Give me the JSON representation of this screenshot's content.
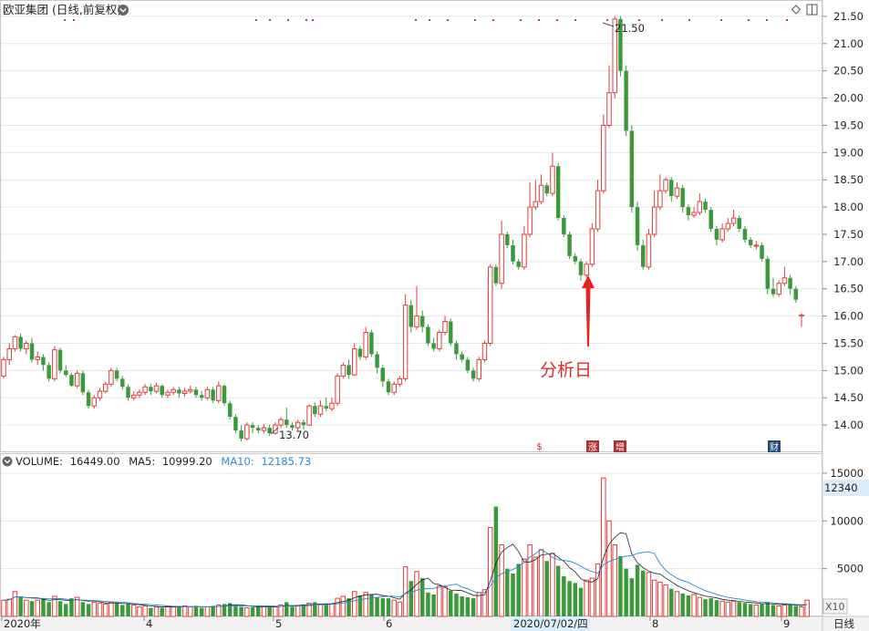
{
  "header": {
    "title": "欧亚集团 (日线,前复权)",
    "dropdown_icon": "chevron-down-icon",
    "diamond_icon": "diamond-icon",
    "settings_icon": "window-icon"
  },
  "price_axis": {
    "ticks": [
      "21.50",
      "21.00",
      "20.50",
      "20.00",
      "19.50",
      "19.00",
      "18.50",
      "18.00",
      "17.50",
      "17.00",
      "16.50",
      "16.00",
      "15.50",
      "15.00",
      "14.50",
      "14.00"
    ],
    "values": [
      21.5,
      21.0,
      20.5,
      20.0,
      19.5,
      19.0,
      18.5,
      18.0,
      17.5,
      17.0,
      16.5,
      16.0,
      15.5,
      15.0,
      14.5,
      14.0
    ]
  },
  "annotations": {
    "high_label": "21.50",
    "low_label": "13.70",
    "analysis_label": "分析日",
    "event_markers": [
      "$",
      "涨",
      "增",
      "财"
    ]
  },
  "volume_header": {
    "volume_label": "VOLUME:",
    "volume_value": "16449.00",
    "ma5_label": "MA5:",
    "ma5_value": "10999.20",
    "ma10_label": "MA10:",
    "ma10_value": "12185.73"
  },
  "volume_axis": {
    "ticks": [
      "15000",
      "10000",
      "5000"
    ],
    "values": [
      15000,
      10000,
      5000
    ],
    "current_badge": "12340",
    "multiplier": "X10"
  },
  "time_axis": {
    "labels": [
      "2020年",
      "4",
      "5",
      "6",
      "8",
      "9"
    ],
    "cursor_label": "2020/07/02/四",
    "period_button": "日线"
  },
  "colors": {
    "up": "#e03c3c",
    "down": "#3a9a3a",
    "ma5": "#222222",
    "ma10": "#2a8ad0",
    "grid": "#e6e6e6",
    "annotation": "#e02a2a",
    "marker_dots": "#d020d0"
  },
  "chart_data": {
    "type": "candlestick",
    "title": "欧亚集团 (日线,前复权)",
    "ylim": [
      13.5,
      21.8
    ],
    "volume_ylim": [
      0,
      17000
    ],
    "high": 21.5,
    "low": 13.7,
    "candles": [
      [
        14.9,
        15.2,
        15.25,
        14.85
      ],
      [
        15.2,
        15.4,
        15.5,
        15.1
      ],
      [
        15.4,
        15.62,
        15.65,
        15.35
      ],
      [
        15.62,
        15.4,
        15.68,
        15.35
      ],
      [
        15.4,
        15.5,
        15.55,
        15.3
      ],
      [
        15.5,
        15.2,
        15.6,
        15.15
      ],
      [
        15.2,
        15.25,
        15.35,
        15.1
      ],
      [
        15.25,
        15.1,
        15.3,
        15.0
      ],
      [
        15.1,
        14.85,
        15.15,
        14.8
      ],
      [
        14.85,
        15.38,
        15.45,
        14.8
      ],
      [
        15.38,
        15.0,
        15.42,
        14.95
      ],
      [
        15.0,
        14.92,
        15.1,
        14.88
      ],
      [
        14.92,
        14.72,
        14.95,
        14.7
      ],
      [
        14.72,
        14.95,
        15.0,
        14.68
      ],
      [
        14.95,
        14.6,
        15.0,
        14.55
      ],
      [
        14.6,
        14.35,
        14.65,
        14.3
      ],
      [
        14.35,
        14.5,
        14.55,
        14.3
      ],
      [
        14.5,
        14.62,
        14.68,
        14.45
      ],
      [
        14.62,
        14.75,
        14.8,
        14.58
      ],
      [
        14.75,
        15.0,
        15.05,
        14.7
      ],
      [
        15.0,
        14.85,
        15.05,
        14.8
      ],
      [
        14.85,
        14.7,
        14.9,
        14.65
      ],
      [
        14.7,
        14.5,
        14.75,
        14.45
      ],
      [
        14.5,
        14.55,
        14.62,
        14.45
      ],
      [
        14.55,
        14.6,
        14.65,
        14.5
      ],
      [
        14.6,
        14.7,
        14.75,
        14.55
      ],
      [
        14.7,
        14.62,
        14.75,
        14.55
      ],
      [
        14.62,
        14.72,
        14.78,
        14.58
      ],
      [
        14.72,
        14.55,
        14.75,
        14.5
      ],
      [
        14.55,
        14.6,
        14.65,
        14.5
      ],
      [
        14.6,
        14.65,
        14.7,
        14.55
      ],
      [
        14.65,
        14.58,
        14.7,
        14.5
      ],
      [
        14.58,
        14.62,
        14.68,
        14.52
      ],
      [
        14.62,
        14.65,
        14.72,
        14.58
      ],
      [
        14.65,
        14.55,
        14.7,
        14.5
      ],
      [
        14.55,
        14.5,
        14.62,
        14.45
      ],
      [
        14.5,
        14.65,
        14.7,
        14.45
      ],
      [
        14.65,
        14.45,
        14.7,
        14.4
      ],
      [
        14.45,
        14.72,
        14.8,
        14.4
      ],
      [
        14.72,
        14.4,
        14.75,
        14.35
      ],
      [
        14.4,
        14.15,
        14.45,
        14.1
      ],
      [
        14.15,
        13.9,
        14.2,
        13.85
      ],
      [
        13.9,
        13.75,
        14.0,
        13.7
      ],
      [
        13.75,
        14.0,
        14.05,
        13.72
      ],
      [
        14.0,
        13.95,
        14.05,
        13.85
      ],
      [
        13.95,
        13.9,
        14.0,
        13.85
      ],
      [
        13.9,
        13.95,
        14.02,
        13.85
      ],
      [
        13.95,
        13.85,
        14.0,
        13.8
      ],
      [
        13.85,
        14.0,
        14.05,
        13.82
      ],
      [
        14.0,
        14.1,
        14.15,
        13.95
      ],
      [
        14.1,
        14.0,
        14.32,
        13.95
      ],
      [
        14.0,
        13.95,
        14.05,
        13.9
      ],
      [
        13.95,
        14.05,
        14.1,
        13.9
      ],
      [
        14.05,
        14.0,
        14.1,
        13.92
      ],
      [
        14.0,
        14.35,
        14.38,
        13.98
      ],
      [
        14.35,
        14.2,
        14.42,
        14.15
      ],
      [
        14.2,
        14.35,
        14.45,
        14.15
      ],
      [
        14.35,
        14.3,
        14.5,
        14.25
      ],
      [
        14.3,
        14.4,
        14.5,
        14.25
      ],
      [
        14.4,
        14.9,
        14.95,
        14.35
      ],
      [
        14.9,
        15.1,
        15.15,
        14.85
      ],
      [
        15.1,
        14.92,
        15.2,
        14.85
      ],
      [
        14.92,
        15.4,
        15.5,
        14.9
      ],
      [
        15.4,
        15.25,
        15.45,
        15.2
      ],
      [
        15.25,
        15.7,
        15.8,
        15.2
      ],
      [
        15.7,
        15.3,
        15.75,
        15.25
      ],
      [
        15.3,
        15.05,
        15.35,
        14.95
      ],
      [
        15.05,
        14.8,
        15.1,
        14.7
      ],
      [
        14.8,
        14.6,
        14.85,
        14.55
      ],
      [
        14.6,
        14.75,
        14.8,
        14.55
      ],
      [
        14.75,
        14.85,
        14.9,
        14.7
      ],
      [
        14.85,
        16.2,
        16.4,
        14.8
      ],
      [
        16.2,
        15.8,
        16.3,
        15.7
      ],
      [
        15.8,
        16.0,
        16.55,
        15.75
      ],
      [
        16.0,
        15.8,
        16.1,
        15.7
      ],
      [
        15.8,
        15.5,
        15.85,
        15.45
      ],
      [
        15.5,
        15.4,
        15.6,
        15.35
      ],
      [
        15.4,
        15.7,
        15.75,
        15.35
      ],
      [
        15.7,
        15.9,
        16.0,
        15.65
      ],
      [
        15.9,
        15.5,
        15.95,
        15.45
      ],
      [
        15.5,
        15.3,
        15.55,
        15.2
      ],
      [
        15.3,
        15.2,
        15.35,
        15.15
      ],
      [
        15.2,
        15.0,
        15.25,
        14.95
      ],
      [
        15.0,
        14.85,
        15.05,
        14.8
      ],
      [
        14.85,
        15.2,
        15.25,
        14.8
      ],
      [
        15.2,
        15.5,
        15.55,
        15.15
      ],
      [
        15.5,
        16.9,
        16.95,
        15.45
      ],
      [
        16.9,
        16.6,
        16.95,
        16.55
      ],
      [
        16.6,
        17.5,
        17.75,
        16.5
      ],
      [
        17.5,
        17.3,
        17.55,
        17.25
      ],
      [
        17.3,
        17.0,
        17.4,
        16.95
      ],
      [
        17.0,
        16.9,
        17.05,
        16.85
      ],
      [
        16.9,
        17.5,
        17.65,
        16.85
      ],
      [
        17.5,
        18.0,
        18.45,
        17.45
      ],
      [
        18.0,
        18.1,
        18.5,
        17.95
      ],
      [
        18.1,
        18.4,
        18.6,
        18.05
      ],
      [
        18.4,
        18.25,
        18.45,
        18.2
      ],
      [
        18.25,
        18.75,
        19.0,
        18.2
      ],
      [
        18.75,
        17.8,
        18.8,
        17.75
      ],
      [
        17.8,
        17.5,
        17.85,
        17.45
      ],
      [
        17.5,
        17.1,
        17.55,
        17.05
      ],
      [
        17.1,
        17.0,
        17.15,
        16.95
      ],
      [
        17.0,
        16.75,
        17.05,
        16.65
      ],
      [
        16.75,
        16.95,
        17.0,
        16.7
      ],
      [
        16.95,
        17.6,
        17.7,
        16.9
      ],
      [
        17.6,
        18.3,
        18.5,
        17.55
      ],
      [
        18.3,
        19.5,
        19.7,
        18.25
      ],
      [
        19.5,
        20.1,
        20.6,
        19.45
      ],
      [
        20.1,
        21.45,
        21.5,
        20.0
      ],
      [
        21.45,
        20.5,
        21.5,
        20.4
      ],
      [
        20.5,
        19.4,
        20.6,
        19.3
      ],
      [
        19.4,
        18.0,
        19.5,
        17.9
      ],
      [
        18.0,
        17.3,
        18.1,
        17.2
      ],
      [
        17.3,
        16.9,
        17.4,
        16.85
      ],
      [
        16.9,
        17.5,
        17.6,
        16.85
      ],
      [
        17.5,
        18.0,
        18.3,
        17.45
      ],
      [
        18.0,
        18.3,
        18.6,
        17.95
      ],
      [
        18.3,
        18.5,
        18.55,
        18.25
      ],
      [
        18.5,
        18.2,
        18.55,
        18.1
      ],
      [
        18.2,
        18.35,
        18.45,
        18.15
      ],
      [
        18.35,
        18.0,
        18.4,
        17.9
      ],
      [
        18.0,
        17.85,
        18.05,
        17.75
      ],
      [
        17.85,
        17.9,
        18.0,
        17.8
      ],
      [
        17.9,
        18.1,
        18.25,
        17.85
      ],
      [
        18.1,
        17.95,
        18.15,
        17.9
      ],
      [
        17.95,
        17.6,
        18.0,
        17.55
      ],
      [
        17.6,
        17.4,
        17.65,
        17.3
      ],
      [
        17.4,
        17.6,
        17.7,
        17.35
      ],
      [
        17.6,
        17.7,
        17.8,
        17.55
      ],
      [
        17.7,
        17.8,
        17.95,
        17.65
      ],
      [
        17.8,
        17.6,
        17.85,
        17.55
      ],
      [
        17.6,
        17.4,
        17.65,
        17.35
      ],
      [
        17.4,
        17.3,
        17.45,
        17.25
      ],
      [
        17.3,
        17.3,
        17.38,
        17.22
      ],
      [
        17.3,
        17.05,
        17.35,
        17.0
      ],
      [
        17.05,
        16.5,
        17.1,
        16.4
      ],
      [
        16.5,
        16.4,
        16.7,
        16.35
      ],
      [
        16.4,
        16.6,
        16.65,
        16.35
      ],
      [
        16.6,
        16.7,
        16.9,
        16.55
      ],
      [
        16.7,
        16.5,
        16.75,
        16.4
      ],
      [
        16.5,
        16.3,
        16.55,
        16.25
      ],
      [
        16.0,
        16.02,
        16.05,
        15.8
      ]
    ],
    "volume": [
      1700,
      1800,
      2600,
      2100,
      1700,
      1600,
      1700,
      1900,
      1500,
      2100,
      1600,
      1300,
      1900,
      2000,
      1500,
      1300,
      1500,
      1400,
      1300,
      1500,
      1400,
      1200,
      1300,
      1200,
      1000,
      1100,
      900,
      1000,
      900,
      1100,
      1000,
      1000,
      1100,
      1000,
      1100,
      900,
      1000,
      1100,
      1200,
      1300,
      1400,
      1100,
      1000,
      900,
      1000,
      1000,
      1100,
      1000,
      1000,
      1200,
      1500,
      1000,
      1100,
      1200,
      1400,
      1500,
      1300,
      1200,
      1300,
      1900,
      2100,
      1900,
      2600,
      2200,
      2500,
      2300,
      2000,
      1900,
      1900,
      1700,
      1500,
      5200,
      3700,
      4700,
      4000,
      2500,
      2300,
      3200,
      3100,
      2700,
      2400,
      2100,
      2000,
      1900,
      2500,
      2800,
      9300,
      11500,
      7500,
      5000,
      4500,
      5500,
      6000,
      7500,
      6200,
      7000,
      5800,
      6600,
      5300,
      4200,
      3700,
      3500,
      3000,
      3800,
      4000,
      5500,
      14500,
      10000,
      7500,
      6300,
      5000,
      4000,
      5400,
      4800,
      4600,
      3800,
      3600,
      3300,
      2900,
      2600,
      2400,
      2200,
      2300,
      2000,
      1800,
      1900,
      1700,
      1600,
      1500,
      1600,
      1500,
      1400,
      1300,
      1200,
      1300,
      1500,
      1200,
      1100,
      1200,
      1300,
      1100,
      1000,
      1700
    ]
  }
}
